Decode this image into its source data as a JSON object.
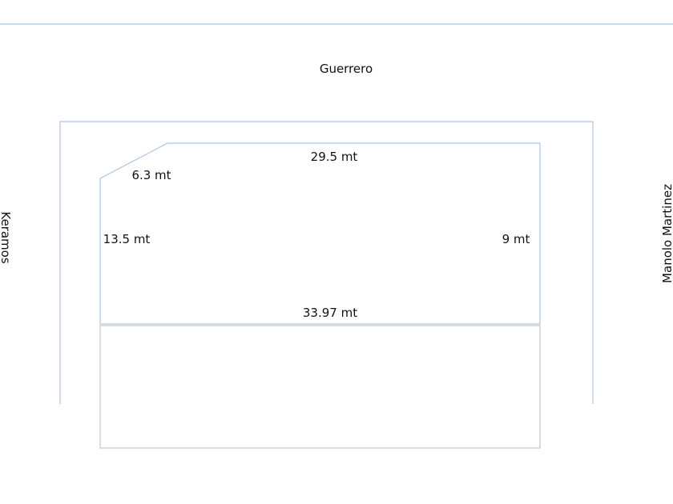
{
  "streets": {
    "top": "Guerrero",
    "left": "Keramos",
    "right": "Manolo Martinez"
  },
  "measurements": {
    "top": "29.5 mt",
    "diagonal": "6.3 mt",
    "left": "13.5 mt",
    "right": "9 mt",
    "bottom": "33.97 mt"
  },
  "colors": {
    "lines": "#aec3e6",
    "lower_block": "#d0d0d0"
  }
}
